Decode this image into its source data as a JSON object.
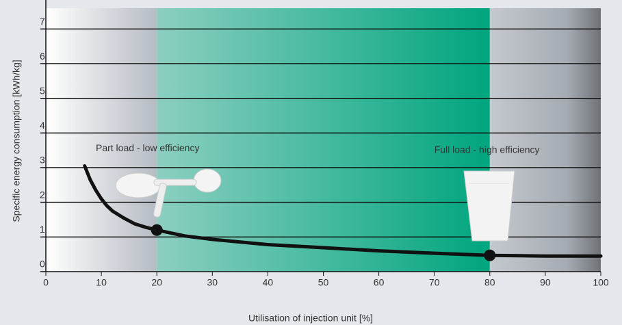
{
  "chart_data": {
    "type": "line",
    "x_label": "Utilisation of injection unit [%]",
    "y_label": "Specific energy consumption [kWh/kg]",
    "annotations": [
      {
        "text": "Part load - low efficiency",
        "x": 9,
        "y": 3.55
      },
      {
        "text": "Full load - high efficiency",
        "x": 70,
        "y": 3.5
      }
    ],
    "regions": [
      {
        "from": 0,
        "to": 20
      },
      {
        "from": 20,
        "to": 80
      },
      {
        "from": 80,
        "to": 100
      }
    ],
    "series": [
      {
        "color": "#111111",
        "x": [
          7,
          8,
          9,
          10,
          11,
          12,
          14,
          16,
          18,
          20,
          25,
          30,
          40,
          50,
          60,
          70,
          80,
          90,
          100
        ],
        "values": [
          3.05,
          2.65,
          2.35,
          2.1,
          1.9,
          1.75,
          1.55,
          1.38,
          1.28,
          1.2,
          1.03,
          0.93,
          0.78,
          0.69,
          0.6,
          0.53,
          0.47,
          0.45,
          0.45
        ]
      }
    ],
    "points": {
      "x": [
        20,
        80
      ],
      "values": [
        1.2,
        0.47
      ]
    },
    "xlim": [
      0,
      100
    ],
    "xticks": [
      0,
      10,
      20,
      30,
      40,
      50,
      60,
      70,
      80,
      90,
      100
    ],
    "ylim": [
      0,
      7.6
    ],
    "yticks": [
      0,
      1,
      2,
      3,
      4,
      5,
      6,
      7
    ],
    "grid": true
  }
}
